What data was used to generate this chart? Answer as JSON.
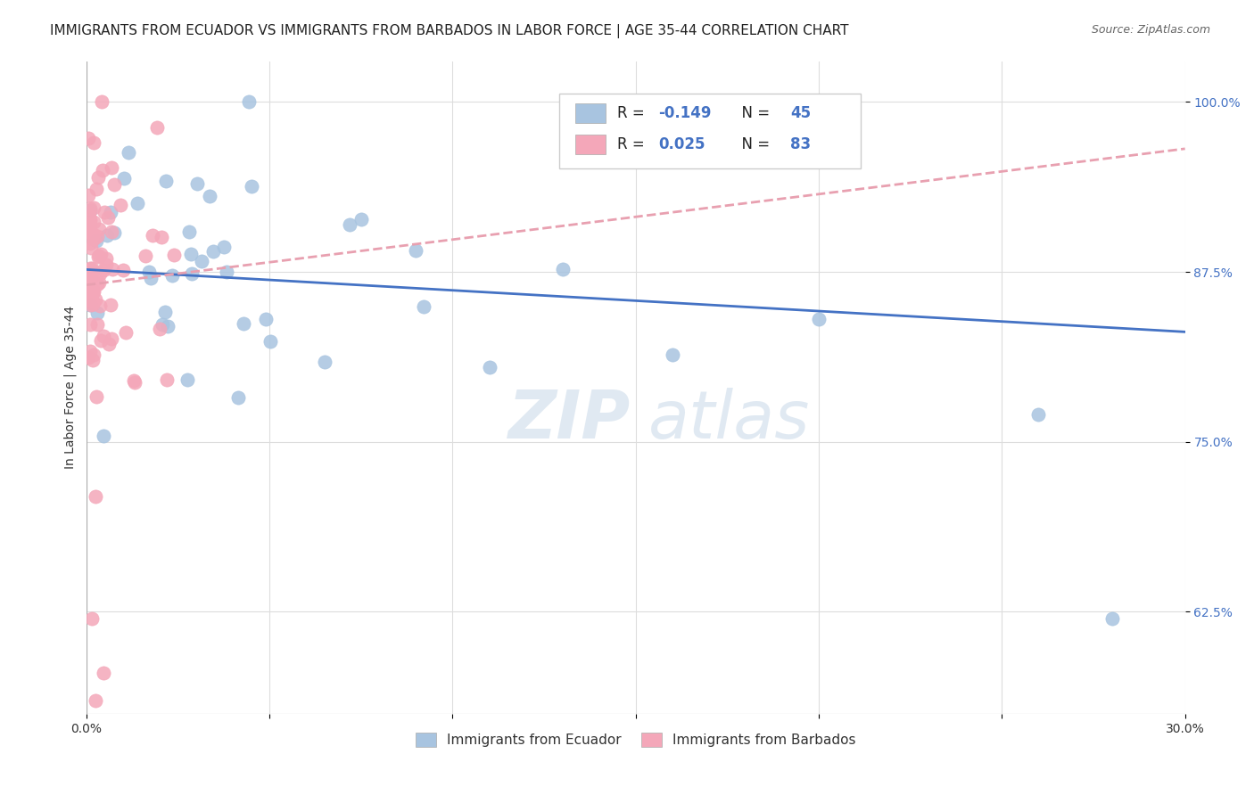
{
  "title": "IMMIGRANTS FROM ECUADOR VS IMMIGRANTS FROM BARBADOS IN LABOR FORCE | AGE 35-44 CORRELATION CHART",
  "source": "Source: ZipAtlas.com",
  "ylabel": "In Labor Force | Age 35-44",
  "xlim": [
    0.0,
    0.3
  ],
  "ylim": [
    0.55,
    1.03
  ],
  "yticks": [
    0.625,
    0.75,
    0.875,
    1.0
  ],
  "xticks": [
    0.0,
    0.05,
    0.1,
    0.15,
    0.2,
    0.25,
    0.3
  ],
  "ecuador_color": "#a8c4e0",
  "barbados_color": "#f4a7b9",
  "ecuador_R": -0.149,
  "ecuador_N": 45,
  "barbados_R": 0.025,
  "barbados_N": 83,
  "ecuador_line_color": "#4472c4",
  "barbados_line_color": "#e8a0b0",
  "r_text_color": "#4472c4",
  "n_text_color": "#4472c4",
  "legend_label_color": "#222222"
}
